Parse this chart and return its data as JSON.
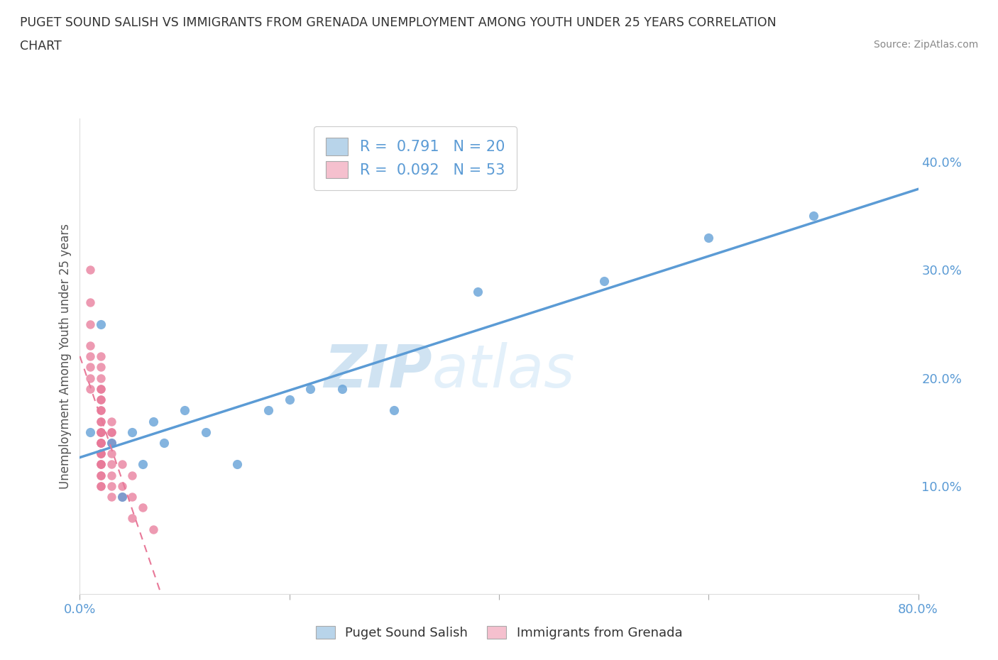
{
  "title_line1": "PUGET SOUND SALISH VS IMMIGRANTS FROM GRENADA UNEMPLOYMENT AMONG YOUTH UNDER 25 YEARS CORRELATION",
  "title_line2": "CHART",
  "source": "Source: ZipAtlas.com",
  "ylabel": "Unemployment Among Youth under 25 years",
  "ylabel_right_ticks": [
    "10.0%",
    "20.0%",
    "30.0%",
    "40.0%"
  ],
  "ylabel_right_vals": [
    0.1,
    0.2,
    0.3,
    0.4
  ],
  "xlim": [
    0.0,
    0.8
  ],
  "ylim": [
    0.0,
    0.44
  ],
  "watermark_zip": "ZIP",
  "watermark_atlas": "atlas",
  "legend1_label": "R =  0.791   N = 20",
  "legend2_label": "R =  0.092   N = 53",
  "legend1_color": "#b8d4ea",
  "legend2_color": "#f5c0ce",
  "blue_color": "#5b9bd5",
  "pink_color": "#e87898",
  "blue_scatter_x": [
    0.01,
    0.02,
    0.03,
    0.04,
    0.05,
    0.06,
    0.07,
    0.08,
    0.1,
    0.12,
    0.15,
    0.18,
    0.2,
    0.22,
    0.25,
    0.3,
    0.38,
    0.5,
    0.6,
    0.7
  ],
  "blue_scatter_y": [
    0.15,
    0.25,
    0.14,
    0.09,
    0.15,
    0.12,
    0.16,
    0.14,
    0.17,
    0.15,
    0.12,
    0.17,
    0.18,
    0.19,
    0.19,
    0.17,
    0.28,
    0.29,
    0.33,
    0.35
  ],
  "pink_scatter_x": [
    0.01,
    0.01,
    0.01,
    0.01,
    0.01,
    0.01,
    0.01,
    0.01,
    0.02,
    0.02,
    0.02,
    0.02,
    0.02,
    0.02,
    0.02,
    0.02,
    0.02,
    0.02,
    0.02,
    0.02,
    0.02,
    0.02,
    0.02,
    0.02,
    0.02,
    0.02,
    0.02,
    0.02,
    0.02,
    0.02,
    0.02,
    0.02,
    0.02,
    0.02,
    0.02,
    0.02,
    0.03,
    0.03,
    0.03,
    0.03,
    0.03,
    0.03,
    0.03,
    0.03,
    0.03,
    0.04,
    0.04,
    0.04,
    0.05,
    0.05,
    0.05,
    0.06,
    0.07
  ],
  "pink_scatter_y": [
    0.3,
    0.27,
    0.25,
    0.23,
    0.22,
    0.21,
    0.2,
    0.19,
    0.22,
    0.21,
    0.2,
    0.19,
    0.19,
    0.18,
    0.18,
    0.17,
    0.17,
    0.16,
    0.16,
    0.15,
    0.15,
    0.15,
    0.14,
    0.14,
    0.14,
    0.14,
    0.13,
    0.13,
    0.13,
    0.12,
    0.12,
    0.12,
    0.11,
    0.11,
    0.1,
    0.1,
    0.16,
    0.15,
    0.15,
    0.14,
    0.13,
    0.12,
    0.11,
    0.1,
    0.09,
    0.12,
    0.1,
    0.09,
    0.11,
    0.09,
    0.07,
    0.08,
    0.06
  ],
  "background_color": "#ffffff",
  "grid_color": "#cccccc",
  "tick_color": "#5b9bd5"
}
